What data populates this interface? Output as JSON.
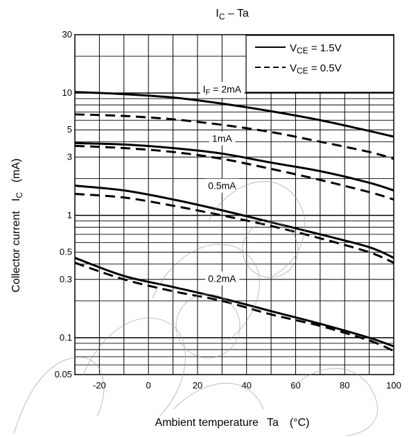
{
  "chart_data": {
    "type": "line",
    "title": {
      "main": "I",
      "sub": "C",
      "rest": " – Ta"
    },
    "xlabel": {
      "main": "Ambient temperature",
      "sym": "Ta",
      "unit": "(°C)"
    },
    "ylabel": {
      "main": "Collector current",
      "sym": "I",
      "sub": "C",
      "unit": "(mA)"
    },
    "xlim": [
      -30,
      100
    ],
    "ylim": [
      0.05,
      30
    ],
    "yscale": "log",
    "grid": true,
    "x_ticks": [
      {
        "value": -20,
        "label": "-20"
      },
      {
        "value": 0,
        "label": "0"
      },
      {
        "value": 20,
        "label": "20"
      },
      {
        "value": 40,
        "label": "40"
      },
      {
        "value": 60,
        "label": "60"
      },
      {
        "value": 80,
        "label": "80"
      },
      {
        "value": 100,
        "label": "100"
      }
    ],
    "y_ticks": [
      {
        "value": 0.05,
        "label": "0.05"
      },
      {
        "value": 0.1,
        "label": "0.1"
      },
      {
        "value": 0.3,
        "label": "0.3"
      },
      {
        "value": 0.5,
        "label": "0.5"
      },
      {
        "value": 1,
        "label": "1"
      },
      {
        "value": 3,
        "label": "3"
      },
      {
        "value": 5,
        "label": "5"
      },
      {
        "value": 10,
        "label": "10"
      },
      {
        "value": 30,
        "label": "30"
      }
    ],
    "legend": {
      "position": "top-right",
      "entries": [
        {
          "sym": "V",
          "sub": "CE",
          "rest": " = 1.5V",
          "style": "solid"
        },
        {
          "sym": "V",
          "sub": "CE",
          "rest": " = 0.5V",
          "style": "dashed"
        }
      ]
    },
    "series": [
      {
        "curve": "IF=2mA",
        "vce": "1.5V",
        "style": "solid",
        "x": [
          -30,
          -10,
          10,
          30,
          50,
          70,
          90,
          100
        ],
        "y": [
          10.2,
          9.8,
          9.2,
          8.2,
          7.1,
          6.0,
          4.9,
          4.4
        ]
      },
      {
        "curve": "IF=2mA",
        "vce": "0.5V",
        "style": "dashed",
        "x": [
          -30,
          -10,
          10,
          30,
          50,
          70,
          90,
          100
        ],
        "y": [
          6.7,
          6.5,
          6.1,
          5.5,
          4.8,
          4.0,
          3.3,
          2.9
        ]
      },
      {
        "curve": "IF=1mA",
        "vce": "1.5V",
        "style": "solid",
        "x": [
          -30,
          -10,
          10,
          30,
          50,
          70,
          90,
          100
        ],
        "y": [
          3.9,
          3.8,
          3.55,
          3.2,
          2.7,
          2.3,
          1.85,
          1.6
        ]
      },
      {
        "curve": "IF=1mA",
        "vce": "0.5V",
        "style": "dashed",
        "x": [
          -30,
          -10,
          10,
          30,
          50,
          70,
          90,
          100
        ],
        "y": [
          3.7,
          3.55,
          3.3,
          2.9,
          2.4,
          1.95,
          1.55,
          1.35
        ]
      },
      {
        "curve": "IF=0.5mA",
        "vce": "1.5V",
        "style": "solid",
        "x": [
          -30,
          -10,
          10,
          30,
          50,
          70,
          90,
          100
        ],
        "y": [
          1.75,
          1.6,
          1.35,
          1.1,
          0.88,
          0.7,
          0.55,
          0.45
        ]
      },
      {
        "curve": "IF=0.5mA",
        "vce": "0.5V",
        "style": "dashed",
        "x": [
          -30,
          -10,
          10,
          30,
          50,
          70,
          90,
          100
        ],
        "y": [
          1.5,
          1.4,
          1.2,
          1.0,
          0.82,
          0.65,
          0.5,
          0.41
        ]
      },
      {
        "curve": "IF=0.2mA",
        "vce": "1.5V",
        "style": "solid",
        "x": [
          -30,
          -10,
          10,
          30,
          50,
          70,
          90,
          100
        ],
        "y": [
          0.45,
          0.32,
          0.26,
          0.21,
          0.165,
          0.13,
          0.1,
          0.085
        ]
      },
      {
        "curve": "IF=0.2mA",
        "vce": "0.5V",
        "style": "dashed",
        "x": [
          -30,
          -10,
          10,
          30,
          50,
          70,
          90,
          100
        ],
        "y": [
          0.41,
          0.3,
          0.24,
          0.2,
          0.155,
          0.125,
          0.095,
          0.078
        ]
      }
    ],
    "annotations": [
      {
        "sym": "I",
        "sub": "F",
        "rest": " = 2mA",
        "x": 30,
        "y": 10.8
      },
      {
        "sym": "",
        "sub": "",
        "rest": "1mA",
        "x": 30,
        "y": 4.25
      },
      {
        "sym": "",
        "sub": "",
        "rest": "0.5mA",
        "x": 30,
        "y": 1.75
      },
      {
        "sym": "",
        "sub": "",
        "rest": "0.2mA",
        "x": 30,
        "y": 0.305
      }
    ]
  }
}
